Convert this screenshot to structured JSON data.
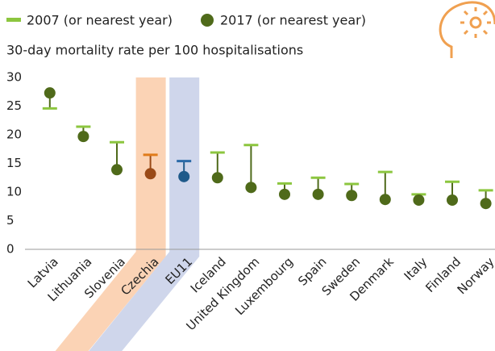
{
  "chart_data": {
    "type": "dumbbell",
    "subtitle": "30-day mortality rate per 100 hospitalisations",
    "categories": [
      "Latvia",
      "Lithuania",
      "Slovenia",
      "Czechia",
      "EU11",
      "Iceland",
      "United Kingdom",
      "Luxembourg",
      "Spain",
      "Sweden",
      "Denmark",
      "Italy",
      "Finland",
      "Norway"
    ],
    "series": [
      {
        "name": "2007 (or nearest year)",
        "color": "#8cc63f",
        "values": [
          24.6,
          21.4,
          18.7,
          16.5,
          15.4,
          16.9,
          18.2,
          11.5,
          12.5,
          11.4,
          13.5,
          9.6,
          11.8,
          10.3
        ]
      },
      {
        "name": "2017 (or nearest year)",
        "color": "#4f6a1a",
        "values": [
          27.3,
          19.7,
          13.9,
          13.2,
          12.7,
          12.5,
          10.8,
          9.6,
          9.6,
          9.4,
          8.7,
          8.6,
          8.6,
          8.0
        ]
      }
    ],
    "highlights": [
      {
        "category": "Czechia",
        "band_color": "#fbd3b5",
        "dash_color": "#e07b1a",
        "dot_color": "#9a4a17"
      },
      {
        "category": "EU11",
        "band_color": "#cfd6eb",
        "dash_color": "#2b6aa8",
        "dot_color": "#1f5a8a"
      }
    ],
    "ylim": [
      0,
      30
    ],
    "yticks": [
      0,
      5,
      10,
      15,
      20,
      25,
      30
    ],
    "grid": false
  }
}
